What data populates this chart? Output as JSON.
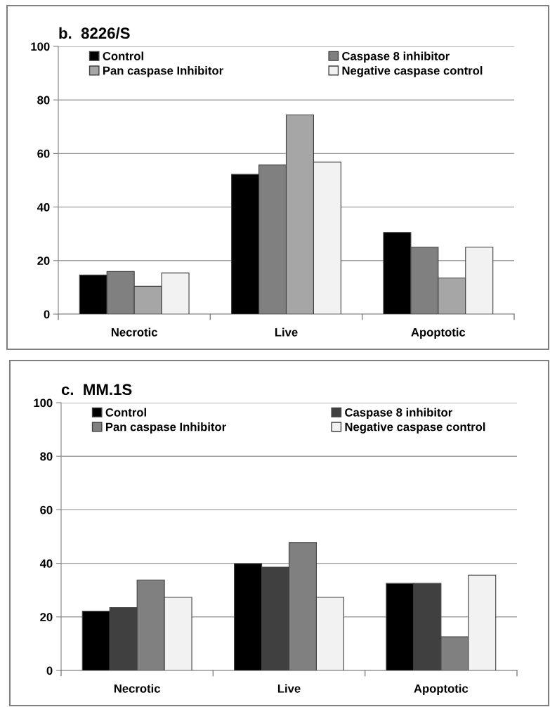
{
  "chart_data": [
    {
      "type": "bar",
      "title": "b.  8226/S",
      "categories": [
        "Necrotic",
        "Live",
        "Apoptotic"
      ],
      "ylim": [
        0,
        100
      ],
      "yticks": [
        0,
        20,
        40,
        60,
        80,
        100
      ],
      "grid": "y",
      "legend": "top",
      "series": [
        {
          "name": "Control",
          "color": "#000000",
          "values": [
            14.6,
            52.2,
            30.5
          ]
        },
        {
          "name": "Caspase 8 inhibitor",
          "color": "#808080",
          "values": [
            15.9,
            55.7,
            25.0
          ]
        },
        {
          "name": "Pan caspase Inhibitor",
          "color": "#a6a6a6",
          "values": [
            10.4,
            74.4,
            13.5
          ]
        },
        {
          "name": "Negative caspase control",
          "color": "#f2f2f2",
          "values": [
            15.4,
            56.8,
            25.0
          ]
        }
      ]
    },
    {
      "type": "bar",
      "title": "c.  MM.1S",
      "categories": [
        "Necrotic",
        "Live",
        "Apoptotic"
      ],
      "ylim": [
        0,
        100
      ],
      "yticks": [
        0,
        20,
        40,
        60,
        80,
        100
      ],
      "grid": "y",
      "legend": "top",
      "series": [
        {
          "name": "Control",
          "color": "#000000",
          "values": [
            22.1,
            39.9,
            32.5
          ]
        },
        {
          "name": "Caspase 8 inhibitor",
          "color": "#404040",
          "values": [
            23.5,
            38.6,
            32.5
          ]
        },
        {
          "name": "Pan caspase Inhibitor",
          "color": "#808080",
          "values": [
            33.8,
            47.8,
            12.6
          ]
        },
        {
          "name": "Negative caspase control",
          "color": "#f2f2f2",
          "values": [
            27.3,
            27.3,
            35.6
          ]
        }
      ]
    }
  ]
}
